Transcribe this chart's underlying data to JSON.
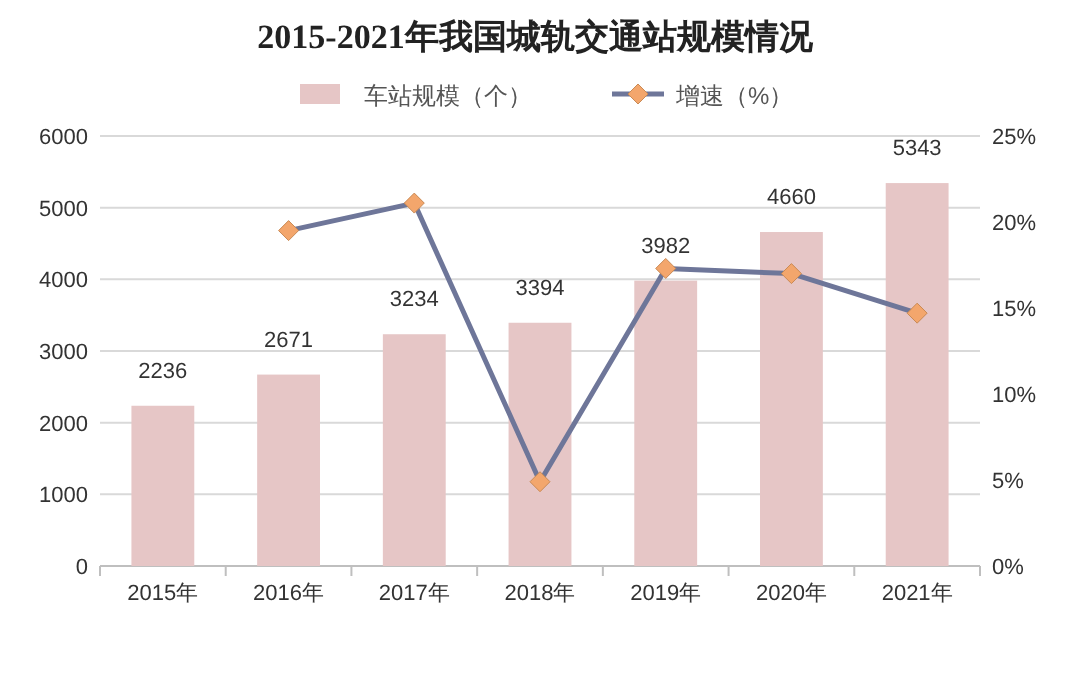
{
  "chart_data": {
    "type": "bar",
    "title": "2015-2021年我国城轨交通站规模情况",
    "categories": [
      "2015年",
      "2016年",
      "2017年",
      "2018年",
      "2019年",
      "2020年",
      "2021年"
    ],
    "series": [
      {
        "name": "车站规模（个）",
        "color": "#e6c6c6",
        "values": [
          2236,
          2671,
          3234,
          3394,
          3982,
          4660,
          5343
        ],
        "value_labels": [
          "2236",
          "2671",
          "3234",
          "3394",
          "3982",
          "4660",
          "5343"
        ]
      },
      {
        "name": "增速（%）",
        "type": "line",
        "axis": "y2",
        "color": "#6e7699",
        "marker": "diamond",
        "values": [
          null,
          19.5,
          21.1,
          4.9,
          17.3,
          17.0,
          14.7
        ]
      }
    ],
    "ylim": [
      0,
      6000
    ],
    "yticks": [
      0,
      1000,
      2000,
      3000,
      4000,
      5000,
      6000
    ],
    "y2lim": [
      0,
      25
    ],
    "y2ticks": [
      {
        "value": 0,
        "label": "0%"
      },
      {
        "value": 5,
        "label": "5%"
      },
      {
        "value": 10,
        "label": "10%"
      },
      {
        "value": 15,
        "label": "15%"
      },
      {
        "value": 20,
        "label": "20%"
      },
      {
        "value": 25,
        "label": "25%"
      }
    ],
    "grid": "y",
    "legend": "top"
  }
}
